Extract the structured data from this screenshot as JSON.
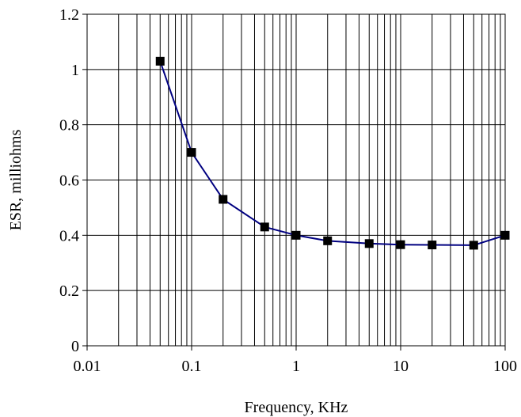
{
  "chart_data": {
    "type": "line",
    "xlabel": "Frequency, KHz",
    "ylabel": "ESR, milliohms",
    "x_scale": "log",
    "xlim": [
      0.01,
      100
    ],
    "ylim": [
      0,
      1.2
    ],
    "x_ticks": [
      0.01,
      0.1,
      1,
      10,
      100
    ],
    "x_tick_labels": [
      "0.01",
      "0.1",
      "1",
      "10",
      "100"
    ],
    "y_ticks": [
      0,
      0.2,
      0.4,
      0.6,
      0.8,
      1,
      1.2
    ],
    "y_tick_labels": [
      "0",
      "0.2",
      "0.4",
      "0.6",
      "0.8",
      "1",
      "1.2"
    ],
    "grid": true,
    "series": [
      {
        "x": [
          0.05,
          0.1,
          0.2,
          0.5,
          1,
          2,
          5,
          10,
          20,
          50,
          100
        ],
        "values": [
          1.03,
          0.7,
          0.53,
          0.43,
          0.4,
          0.38,
          0.37,
          0.366,
          0.365,
          0.364,
          0.4
        ],
        "color": "#000080",
        "marker_color": "#000000",
        "marker": "square"
      }
    ]
  }
}
